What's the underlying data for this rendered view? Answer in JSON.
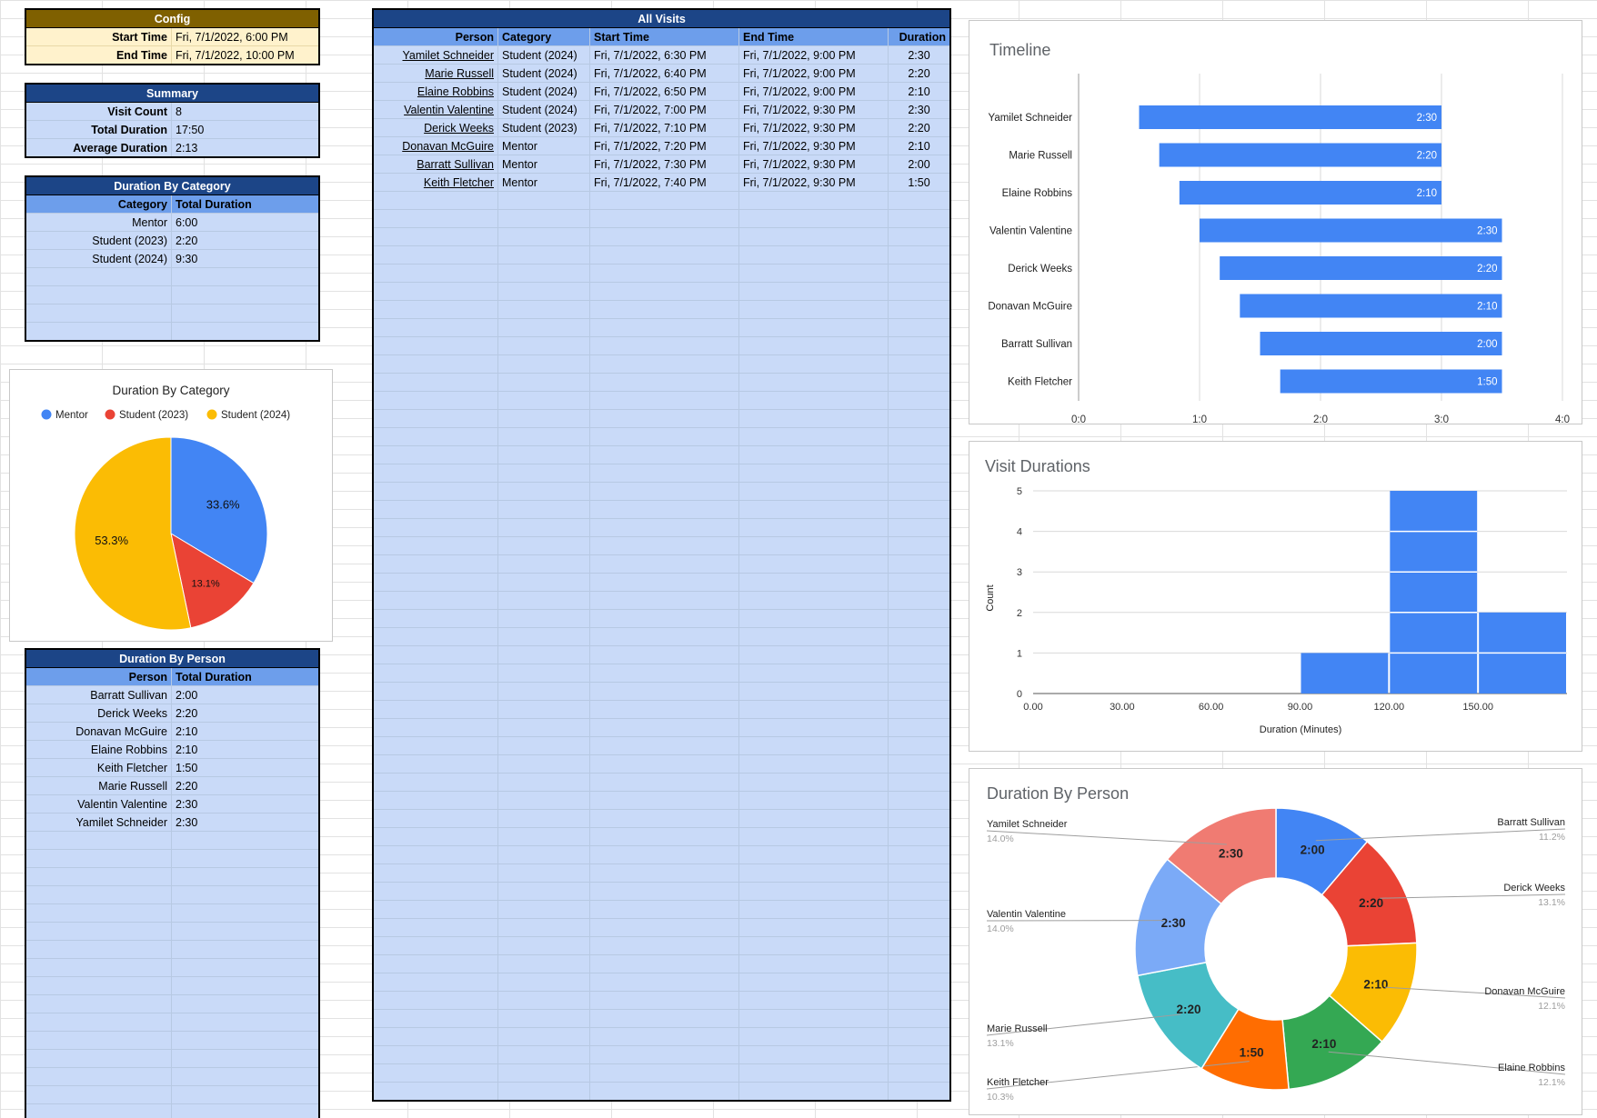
{
  "config": {
    "title": "Config",
    "rows": [
      {
        "label": "Start Time",
        "value": "Fri, 7/1/2022, 6:00 PM"
      },
      {
        "label": "End Time",
        "value": "Fri, 7/1/2022, 10:00 PM"
      }
    ]
  },
  "summary": {
    "title": "Summary",
    "rows": [
      {
        "label": "Visit Count",
        "value": "8"
      },
      {
        "label": "Total Duration",
        "value": "17:50"
      },
      {
        "label": "Average Duration",
        "value": "2:13"
      }
    ]
  },
  "by_category": {
    "title": "Duration By Category",
    "headers": [
      "Category",
      "Total Duration"
    ],
    "rows": [
      [
        "Mentor",
        "6:00"
      ],
      [
        "Student (2023)",
        "2:20"
      ],
      [
        "Student (2024)",
        "9:30"
      ]
    ]
  },
  "by_person": {
    "title": "Duration By Person",
    "headers": [
      "Person",
      "Total Duration"
    ],
    "rows": [
      [
        "Barratt Sullivan",
        "2:00"
      ],
      [
        "Derick Weeks",
        "2:20"
      ],
      [
        "Donavan McGuire",
        "2:10"
      ],
      [
        "Elaine Robbins",
        "2:10"
      ],
      [
        "Keith Fletcher",
        "1:50"
      ],
      [
        "Marie Russell",
        "2:20"
      ],
      [
        "Valentin Valentine",
        "2:30"
      ],
      [
        "Yamilet Schneider",
        "2:30"
      ]
    ]
  },
  "all_visits": {
    "title": "All Visits",
    "headers": [
      "Person",
      "Category",
      "Start Time",
      "End Time",
      "Duration"
    ],
    "rows": [
      [
        "Yamilet Schneider",
        "Student (2024)",
        "Fri, 7/1/2022, 6:30 PM",
        "Fri, 7/1/2022, 9:00 PM",
        "2:30"
      ],
      [
        "Marie Russell",
        "Student (2024)",
        "Fri, 7/1/2022, 6:40 PM",
        "Fri, 7/1/2022, 9:00 PM",
        "2:20"
      ],
      [
        "Elaine Robbins",
        "Student (2024)",
        "Fri, 7/1/2022, 6:50 PM",
        "Fri, 7/1/2022, 9:00 PM",
        "2:10"
      ],
      [
        "Valentin Valentine",
        "Student (2024)",
        "Fri, 7/1/2022, 7:00 PM",
        "Fri, 7/1/2022, 9:30 PM",
        "2:30"
      ],
      [
        "Derick Weeks",
        "Student (2023)",
        "Fri, 7/1/2022, 7:10 PM",
        "Fri, 7/1/2022, 9:30 PM",
        "2:20"
      ],
      [
        "Donavan McGuire",
        "Mentor",
        "Fri, 7/1/2022, 7:20 PM",
        "Fri, 7/1/2022, 9:30 PM",
        "2:10"
      ],
      [
        "Barratt Sullivan",
        "Mentor",
        "Fri, 7/1/2022, 7:30 PM",
        "Fri, 7/1/2022, 9:30 PM",
        "2:00"
      ],
      [
        "Keith Fletcher",
        "Mentor",
        "Fri, 7/1/2022, 7:40 PM",
        "Fri, 7/1/2022, 9:30 PM",
        "1:50"
      ]
    ]
  },
  "chart_data": [
    {
      "type": "pie",
      "title": "Duration By Category",
      "legend_position": "top",
      "categories": [
        "Mentor",
        "Student (2023)",
        "Student (2024)"
      ],
      "values": [
        33.6,
        13.1,
        53.3
      ],
      "labels": [
        "33.6%",
        "13.1%",
        "53.3%"
      ],
      "colors": [
        "#4285f4",
        "#ea4335",
        "#fbbc04"
      ]
    },
    {
      "type": "bar",
      "orientation": "horizontal",
      "title": "Timeline",
      "categories": [
        "Yamilet Schneider",
        "Marie Russell",
        "Elaine Robbins",
        "Valentin Valentine",
        "Derick Weeks",
        "Donavan McGuire",
        "Barratt Sullivan",
        "Keith Fletcher"
      ],
      "start_hours": [
        0.5,
        0.6667,
        0.8333,
        1.0,
        1.1667,
        1.3333,
        1.5,
        1.6667
      ],
      "end_hours": [
        3.0,
        3.0,
        3.0,
        3.5,
        3.5,
        3.5,
        3.5,
        3.5
      ],
      "bar_labels": [
        "2:30",
        "2:20",
        "2:10",
        "2:30",
        "2:20",
        "2:10",
        "2:00",
        "1:50"
      ],
      "xlim": [
        0,
        4
      ],
      "x_ticks": [
        "0:0",
        "1:0",
        "2:0",
        "3:0",
        "4:0"
      ],
      "color": "#4285f4",
      "grid": true
    },
    {
      "type": "bar",
      "subtype": "histogram",
      "title": "Visit Durations",
      "xlabel": "Duration (Minutes)",
      "ylabel": "Count",
      "bins": [
        [
          90,
          120
        ],
        [
          120,
          150
        ],
        [
          150,
          180
        ]
      ],
      "values": [
        1,
        5,
        2
      ],
      "xlim": [
        0,
        180
      ],
      "ylim": [
        0,
        5
      ],
      "x_ticks": [
        "0.00",
        "30.00",
        "60.00",
        "90.00",
        "120.00",
        "150.00"
      ],
      "y_ticks": [
        "0",
        "1",
        "2",
        "3",
        "4",
        "5"
      ],
      "color": "#4285f4",
      "grid": true
    },
    {
      "type": "pie",
      "subtype": "donut",
      "title": "Duration By Person",
      "categories": [
        "Barratt Sullivan",
        "Derick Weeks",
        "Donavan McGuire",
        "Elaine Robbins",
        "Keith Fletcher",
        "Marie Russell",
        "Valentin Valentine",
        "Yamilet Schneider"
      ],
      "values": [
        11.2,
        13.1,
        12.1,
        12.1,
        10.3,
        13.1,
        14.0,
        14.0
      ],
      "slice_labels": [
        "2:00",
        "2:20",
        "2:10",
        "2:10",
        "1:50",
        "2:20",
        "2:30",
        "2:30"
      ],
      "percent_labels": [
        "11.2%",
        "13.1%",
        "12.1%",
        "12.1%",
        "10.3%",
        "13.1%",
        "14.0%",
        "14.0%"
      ],
      "colors": [
        "#4285f4",
        "#ea4335",
        "#fbbc04",
        "#34a853",
        "#ff6d01",
        "#46bdc6",
        "#7baaf7",
        "#f07b72"
      ]
    }
  ]
}
